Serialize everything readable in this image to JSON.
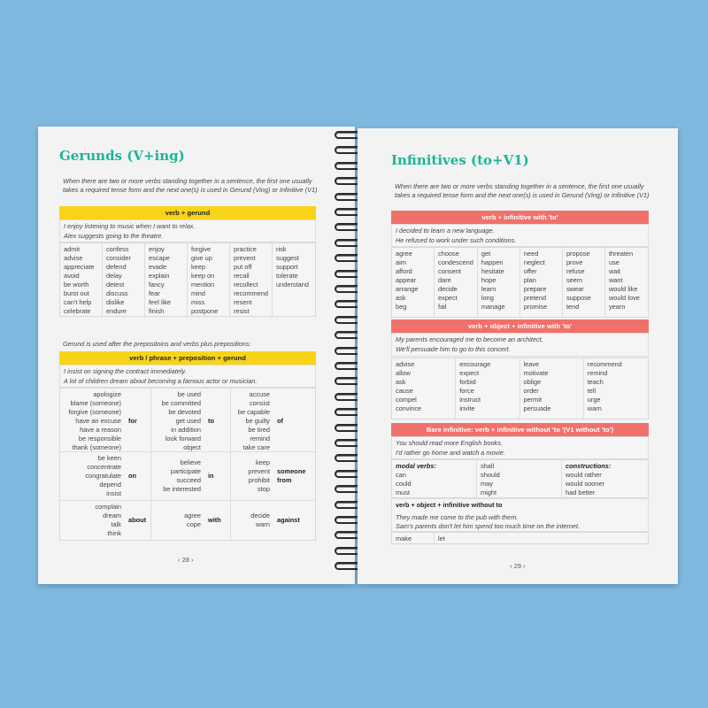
{
  "left": {
    "title": "Gerunds (V+ing)",
    "intro": "When there are two or more verbs standing together in a sentence, the first one usually takes a required tense form and the next one(s) is used in Gerund (Ving) or Infinitive (V1)",
    "header1": "verb + gerund",
    "examples1": [
      "I enjoy listening to music when I want to relax.",
      "Alex suggests going to the theatre."
    ],
    "verbs": [
      [
        "admit",
        "advise",
        "appreciate",
        "avoid",
        "be worth",
        "burst out",
        "can't help",
        "celebrate"
      ],
      [
        "confess",
        "consider",
        "defend",
        "delay",
        "detest",
        "discuss",
        "dislike",
        "endure"
      ],
      [
        "enjoy",
        "escape",
        "evade",
        "explain",
        "fancy",
        "fear",
        "feel like",
        "finish"
      ],
      [
        "forgive",
        "give up",
        "keep",
        "keep on",
        "mention",
        "mind",
        "miss",
        "postpone"
      ],
      [
        "practice",
        "prevent",
        "put off",
        "recall",
        "recollect",
        "recommend",
        "resent",
        "resist"
      ],
      [
        "risk",
        "suggest",
        "support",
        "tolerate",
        "understand"
      ]
    ],
    "intro2": "Gerund is used after the prepositoins and verbs plus prepositions:",
    "header2": "verb / phrase + preposition + gerund",
    "examples2": [
      "I insist on signing the contract immediately.",
      "A lot of children dream about becoming a famous actor or musician."
    ],
    "prep_rows": [
      [
        {
          "verbs": [
            "apologize",
            "blame (someone)",
            "forgive (someone)",
            "have an excuse",
            "have a reason",
            "be responsible",
            "thank (someone)"
          ],
          "prep": "for"
        },
        {
          "verbs": [
            "be used",
            "be committed",
            "be devoted",
            "get used",
            "in addition",
            "look forward",
            "object"
          ],
          "prep": "to"
        },
        {
          "verbs": [
            "accuse",
            "consist",
            "be capable",
            "be guilty",
            "be tired",
            "remind",
            "take care"
          ],
          "prep": "of"
        }
      ],
      [
        {
          "verbs": [
            "be keen",
            "concentrate",
            "congratulate",
            "depend",
            "insist"
          ],
          "prep": "on"
        },
        {
          "verbs": [
            "believe",
            "participate",
            "succeed",
            "be interested"
          ],
          "prep": "in"
        },
        {
          "verbs": [
            "keep",
            "prevent",
            "prohibit",
            "stop"
          ],
          "prep": "someone from"
        }
      ],
      [
        {
          "verbs": [
            "complain",
            "dream",
            "talk",
            "think"
          ],
          "prep": "about"
        },
        {
          "verbs": [
            "agree",
            "cope"
          ],
          "prep": "with"
        },
        {
          "verbs": [
            "decide",
            "warn"
          ],
          "prep": "against"
        }
      ]
    ],
    "page_number": "‹ 28 ›"
  },
  "right": {
    "title": "Infinitives (to+V1)",
    "intro": "When there are two or more verbs standing together in a sentence, the first one usually takes a required tense form and the next one(s) is used in Gerund (Ving) or Infinitive (V1)",
    "header1": "verb + infinitive with 'to'",
    "examples1": [
      "I decided to learn a new language.",
      "He refused to work under such conditions."
    ],
    "verbs1": [
      [
        "agree",
        "aim",
        "afford",
        "appear",
        "arrange",
        "ask",
        "beg"
      ],
      [
        "choose",
        "condescend",
        "consent",
        "dare",
        "decide",
        "expect",
        "fail"
      ],
      [
        "get",
        "happen",
        "hesitate",
        "hope",
        "learn",
        "long",
        "manage"
      ],
      [
        "need",
        "neglect",
        "offer",
        "plan",
        "prepare",
        "pretend",
        "promise"
      ],
      [
        "propose",
        "prove",
        "refuse",
        "seem",
        "swear",
        "suppose",
        "tend"
      ],
      [
        "threaten",
        "use",
        "wait",
        "want",
        "would like",
        "would love",
        "yearn"
      ]
    ],
    "header2": "verb + object + infinitive with 'to'",
    "examples2": [
      "My parents encouraged me to become an architect.",
      "We'll persuade him to go to this concert."
    ],
    "verbs2": [
      [
        "advise",
        "allow",
        "ask",
        "cause",
        "compel",
        "convince"
      ],
      [
        "encourage",
        "expect",
        "forbid",
        "force",
        "instruct",
        "invite"
      ],
      [
        "leave",
        "motivate",
        "oblige",
        "order",
        "permit",
        "persuade"
      ],
      [
        "recommend",
        "remind",
        "teach",
        "tell",
        "urge",
        "warn"
      ]
    ],
    "header3": "Bare infinitive: verb + infinitive without 'to '(V1 without 'to')",
    "examples3": [
      "You should read more English books.",
      "I'd rather go home and watch a movie."
    ],
    "modal_label": "modal verbs:",
    "modal_col1": [
      "can",
      "could",
      "must"
    ],
    "modal_col2": [
      "shall",
      "should",
      "may",
      "might"
    ],
    "constructions_label": "constructions:",
    "constructions": [
      "would rather",
      "would sooner",
      "had better"
    ],
    "header4": "verb + object + infinitive without to",
    "examples4": [
      "They made me come to the pub with them.",
      "Sam's parents don't let him spend too much time on the internet."
    ],
    "verbs4": [
      "make",
      "let"
    ],
    "page_number": "‹ 29 ›"
  },
  "colors": {
    "background": "#80b9e0",
    "title": "#1db596",
    "yellow": "#f8d418",
    "red": "#f0716b"
  }
}
